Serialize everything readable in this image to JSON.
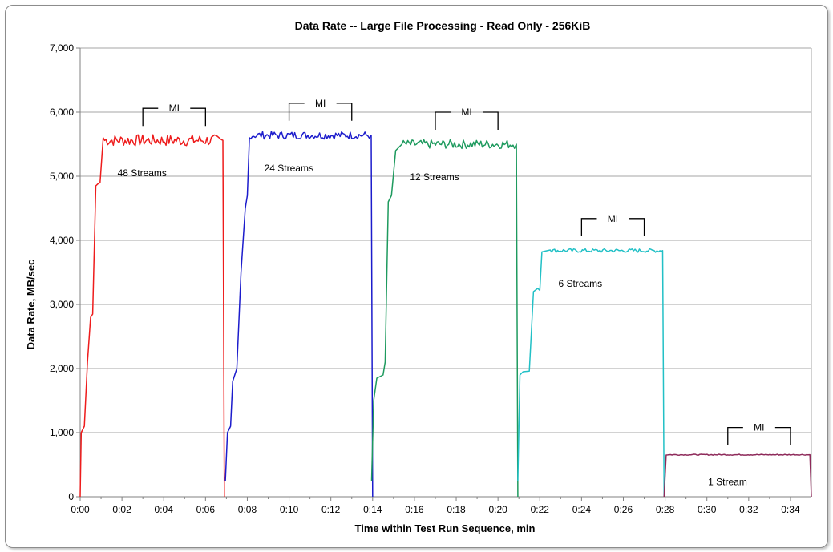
{
  "chart_data": {
    "type": "line",
    "title": "Data Rate -- Large File Processing - Read Only - 256KiB",
    "xlabel": "Time within Test Run Sequence, min",
    "ylabel": "Data Rate, MB/sec",
    "xlim": [
      0,
      35
    ],
    "ylim": [
      0,
      7000
    ],
    "x_ticks": [
      "0:00",
      "0:02",
      "0:04",
      "0:06",
      "0:08",
      "0:10",
      "0:12",
      "0:14",
      "0:16",
      "0:18",
      "0:20",
      "0:22",
      "0:24",
      "0:26",
      "0:28",
      "0:30",
      "0:32",
      "0:34"
    ],
    "y_ticks": [
      "0",
      "1,000",
      "2,000",
      "3,000",
      "4,000",
      "5,000",
      "6,000",
      "7,000"
    ],
    "grid": "horizontal",
    "legend": "none",
    "series": [
      {
        "label": "48 Streams",
        "color": "#ee1c1c",
        "start": 0.0,
        "end": 6.85,
        "ramp": [
          [
            0.0,
            0
          ],
          [
            0.05,
            1000
          ],
          [
            0.2,
            1100
          ],
          [
            0.35,
            2100
          ],
          [
            0.5,
            2800
          ],
          [
            0.6,
            2850
          ],
          [
            0.75,
            4850
          ],
          [
            0.85,
            4880
          ],
          [
            0.95,
            4900
          ],
          [
            1.1,
            5600
          ]
        ],
        "steady": 5560,
        "noise": 90,
        "mi_start": 3.0,
        "mi_end": 6.0
      },
      {
        "label": "24 Streams",
        "color": "#1c1ccc",
        "start": 6.95,
        "end": 13.95,
        "ramp": [
          [
            6.95,
            250
          ],
          [
            7.05,
            1000
          ],
          [
            7.2,
            1100
          ],
          [
            7.3,
            1800
          ],
          [
            7.5,
            2000
          ],
          [
            7.7,
            3500
          ],
          [
            7.9,
            4500
          ],
          [
            8.0,
            4700
          ],
          [
            8.1,
            5600
          ]
        ],
        "steady": 5640,
        "noise": 60,
        "mi_start": 10.0,
        "mi_end": 13.0
      },
      {
        "label": "12 Streams",
        "color": "#1e9a5e",
        "start": 13.95,
        "end": 20.9,
        "ramp": [
          [
            13.95,
            250
          ],
          [
            14.05,
            1500
          ],
          [
            14.2,
            1850
          ],
          [
            14.5,
            1900
          ],
          [
            14.6,
            2100
          ],
          [
            14.75,
            4600
          ],
          [
            14.9,
            4700
          ],
          [
            15.1,
            5400
          ],
          [
            15.4,
            5500
          ]
        ],
        "steady": 5500,
        "noise": 70,
        "mi_start": 17.0,
        "mi_end": 20.0
      },
      {
        "label": "6 Streams",
        "color": "#22c0c6",
        "start": 20.9,
        "end": 27.9,
        "ramp": [
          [
            20.95,
            250
          ],
          [
            21.05,
            1900
          ],
          [
            21.2,
            1950
          ],
          [
            21.5,
            1960
          ],
          [
            21.7,
            3200
          ],
          [
            21.9,
            3250
          ],
          [
            22.0,
            3220
          ],
          [
            22.1,
            3820
          ],
          [
            22.5,
            3850
          ]
        ],
        "steady": 3840,
        "noise": 30,
        "mi_start": 24.0,
        "mi_end": 27.0
      },
      {
        "label": "1 Stream",
        "color": "#8e2a5a",
        "start": 27.95,
        "end": 34.95,
        "ramp": [
          [
            27.95,
            0
          ],
          [
            28.05,
            650
          ]
        ],
        "steady": 655,
        "noise": 8,
        "mi_start": 31.0,
        "mi_end": 34.0
      }
    ],
    "annotations": {
      "measurement_interval_label": "MI"
    }
  }
}
